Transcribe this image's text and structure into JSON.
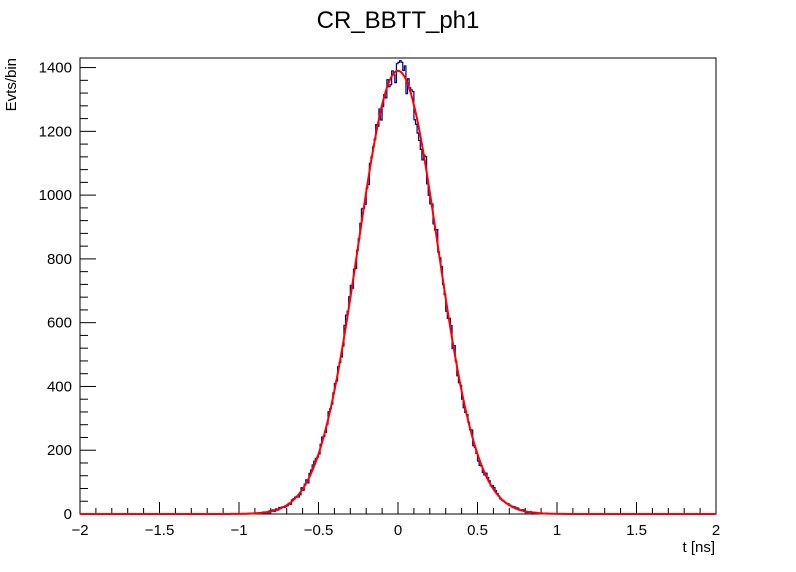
{
  "chart_data": {
    "type": "histogram",
    "title": "CR_BBTT_ph1",
    "xlabel": "t [ns]",
    "ylabel": "Evts/bin",
    "xlim": [
      -2,
      2
    ],
    "ylim": [
      0,
      1430
    ],
    "x_ticks": [
      -2,
      -1.5,
      -1,
      -0.5,
      0,
      0.5,
      1,
      1.5,
      2
    ],
    "x_tick_labels": [
      "−2",
      "−1.5",
      "−1",
      "−0.5",
      "0",
      "0.5",
      "1",
      "1.5",
      "2"
    ],
    "y_ticks": [
      0,
      200,
      400,
      600,
      800,
      1000,
      1200,
      1400
    ],
    "y_tick_labels": [
      "0",
      "200",
      "400",
      "600",
      "800",
      "1000",
      "1200",
      "1400"
    ],
    "grid": false,
    "series": [
      {
        "kind": "histogram",
        "color": "#00007f",
        "bin_width": 0.01,
        "fit": {
          "kind": "gaussian",
          "mean": 0.0,
          "sigma": 0.25,
          "amplitude": 1390
        }
      },
      {
        "kind": "fit-curve",
        "color": "#ff0000",
        "function": "gaussian",
        "mean": 0.0,
        "sigma": 0.25,
        "amplitude": 1390
      }
    ]
  }
}
